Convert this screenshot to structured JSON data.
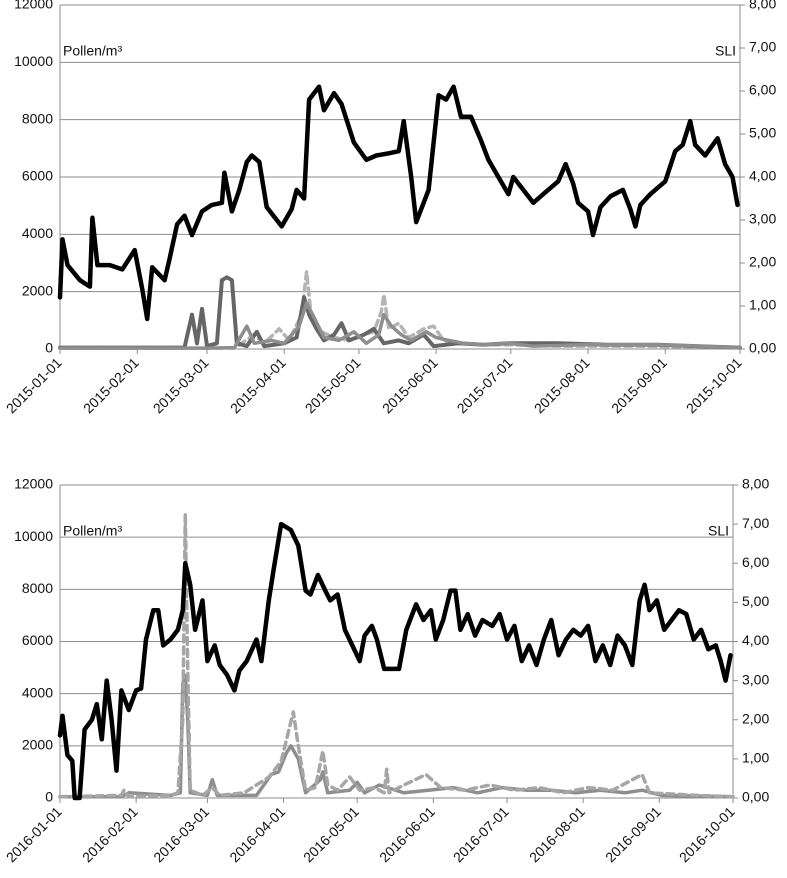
{
  "chart_data": [
    {
      "type": "line",
      "ylabel": "Pollen/m³",
      "y2label": "SLI",
      "grid": true,
      "xlim": [
        "2015-01-01",
        "2015-10-01"
      ],
      "xticks": [
        "2015-01-01",
        "2015-02-01",
        "2015-03-01",
        "2015-04-01",
        "2015-05-01",
        "2015-06-01",
        "2015-07-01",
        "2015-08-01",
        "2015-09-01",
        "2015-10-01"
      ],
      "ylim": [
        0,
        12000
      ],
      "yticks": [
        0,
        2000,
        4000,
        6000,
        8000,
        10000,
        12000
      ],
      "y2lim": [
        0,
        8
      ],
      "y2ticks": [
        {
          "value": 0,
          "label": "0,00"
        },
        {
          "value": 1,
          "label": "1,00"
        },
        {
          "value": 2,
          "label": "2,00"
        },
        {
          "value": 3,
          "label": "3,00"
        },
        {
          "value": 4,
          "label": "4,00"
        },
        {
          "value": 5,
          "label": "5,00"
        },
        {
          "value": 6,
          "label": "6,00"
        },
        {
          "value": 7,
          "label": "7,00"
        },
        {
          "value": 8,
          "label": "8,00"
        }
      ],
      "series": [
        {
          "color": "#b4b4b4",
          "dash": true,
          "line_width": 3.5,
          "x": [
            "2015-01-01",
            "2015-03-12",
            "2015-03-20",
            "2015-03-24",
            "2015-03-30",
            "2015-04-03",
            "2015-04-08",
            "2015-04-10",
            "2015-04-12",
            "2015-04-16",
            "2015-04-21",
            "2015-04-27",
            "2015-05-03",
            "2015-05-07",
            "2015-05-10",
            "2015-05-11",
            "2015-05-13",
            "2015-05-17",
            "2015-05-21",
            "2015-05-27",
            "2015-05-31",
            "2015-06-04",
            "2015-06-10",
            "2015-06-20",
            "2015-06-30",
            "2015-07-20",
            "2015-08-19",
            "2015-10-01"
          ],
          "values": [
            30,
            30,
            500,
            200,
            700,
            300,
            1200,
            2700,
            1000,
            600,
            400,
            300,
            500,
            600,
            1300,
            1900,
            700,
            900,
            400,
            700,
            800,
            300,
            200,
            150,
            150,
            100,
            100,
            50
          ]
        },
        {
          "color": "#666666",
          "line_width": 4,
          "x": [
            "2015-01-01",
            "2015-01-31",
            "2015-02-20",
            "2015-02-23",
            "2015-02-25",
            "2015-02-27",
            "2015-03-01",
            "2015-03-05",
            "2015-03-07",
            "2015-03-09",
            "2015-03-11",
            "2015-03-13",
            "2015-03-17",
            "2015-03-21",
            "2015-03-24",
            "2015-04-01",
            "2015-04-06",
            "2015-04-09",
            "2015-04-11",
            "2015-04-14",
            "2015-04-17",
            "2015-04-21",
            "2015-04-24",
            "2015-04-27",
            "2015-05-03",
            "2015-05-07",
            "2015-05-11",
            "2015-05-17",
            "2015-05-21",
            "2015-05-27",
            "2015-05-31",
            "2015-06-10",
            "2015-06-20",
            "2015-06-30",
            "2015-07-20",
            "2015-08-09",
            "2015-08-29",
            "2015-09-13",
            "2015-10-01"
          ],
          "values": [
            50,
            50,
            50,
            1200,
            200,
            1400,
            100,
            200,
            2400,
            2500,
            2400,
            200,
            100,
            600,
            100,
            200,
            400,
            1800,
            1200,
            700,
            300,
            500,
            900,
            300,
            500,
            700,
            200,
            300,
            200,
            500,
            100,
            200,
            150,
            200,
            200,
            150,
            150,
            100,
            50
          ]
        },
        {
          "color": "#8e8e8e",
          "line_width": 3.5,
          "x": [
            "2015-01-01",
            "2015-03-02",
            "2015-03-12",
            "2015-03-17",
            "2015-03-20",
            "2015-03-27",
            "2015-04-01",
            "2015-04-07",
            "2015-04-10",
            "2015-04-13",
            "2015-04-17",
            "2015-04-23",
            "2015-04-29",
            "2015-05-04",
            "2015-05-09",
            "2015-05-11",
            "2015-05-14",
            "2015-05-18",
            "2015-05-22",
            "2015-05-28",
            "2015-06-01",
            "2015-06-06",
            "2015-06-12",
            "2015-06-20",
            "2015-06-30",
            "2015-07-10",
            "2015-07-30",
            "2015-08-29",
            "2015-10-01"
          ],
          "values": [
            30,
            30,
            50,
            800,
            200,
            300,
            200,
            800,
            1600,
            1100,
            400,
            300,
            600,
            200,
            500,
            1200,
            800,
            500,
            300,
            600,
            400,
            300,
            200,
            150,
            200,
            100,
            150,
            150,
            50
          ]
        },
        {
          "color": "#000000",
          "axis": "y2",
          "line_width": 4.5,
          "x": [
            "2015-01-01",
            "2015-01-02",
            "2015-01-04",
            "2015-01-09",
            "2015-01-13",
            "2015-01-14",
            "2015-01-16",
            "2015-01-21",
            "2015-01-26",
            "2015-01-31",
            "2015-02-03",
            "2015-02-05",
            "2015-02-07",
            "2015-02-12",
            "2015-02-14",
            "2015-02-17",
            "2015-02-20",
            "2015-02-23",
            "2015-02-27",
            "2015-03-03",
            "2015-03-07",
            "2015-03-08",
            "2015-03-11",
            "2015-03-14",
            "2015-03-17",
            "2015-03-19",
            "2015-03-22",
            "2015-03-25",
            "2015-03-31",
            "2015-04-04",
            "2015-04-06",
            "2015-04-09",
            "2015-04-11",
            "2015-04-15",
            "2015-04-17",
            "2015-04-21",
            "2015-04-24",
            "2015-04-29",
            "2015-05-04",
            "2015-05-08",
            "2015-05-13",
            "2015-05-17",
            "2015-05-19",
            "2015-05-22",
            "2015-05-24",
            "2015-05-29",
            "2015-06-02",
            "2015-06-05",
            "2015-06-08",
            "2015-06-11",
            "2015-06-15",
            "2015-06-19",
            "2015-06-22",
            "2015-06-26",
            "2015-06-30",
            "2015-07-02",
            "2015-07-06",
            "2015-07-10",
            "2015-07-14",
            "2015-07-20",
            "2015-07-23",
            "2015-07-26",
            "2015-07-28",
            "2015-08-01",
            "2015-08-03",
            "2015-08-06",
            "2015-08-10",
            "2015-08-15",
            "2015-08-18",
            "2015-08-20",
            "2015-08-22",
            "2015-08-26",
            "2015-09-01",
            "2015-09-05",
            "2015-09-08",
            "2015-09-11",
            "2015-09-13",
            "2015-09-17",
            "2015-09-22",
            "2015-09-25",
            "2015-09-28",
            "2015-09-30"
          ],
          "values": [
            1.2,
            2.55,
            1.95,
            1.6,
            1.45,
            3.05,
            1.95,
            1.95,
            1.85,
            2.3,
            1.4,
            0.7,
            1.9,
            1.6,
            2.1,
            2.9,
            3.1,
            2.65,
            3.2,
            3.35,
            3.4,
            4.1,
            3.2,
            3.7,
            4.35,
            4.5,
            4.35,
            3.3,
            2.85,
            3.25,
            3.7,
            3.5,
            5.8,
            6.1,
            5.55,
            5.95,
            5.7,
            4.8,
            4.4,
            4.5,
            4.55,
            4.6,
            5.3,
            4.0,
            2.95,
            3.7,
            5.9,
            5.8,
            6.1,
            5.4,
            5.4,
            4.85,
            4.4,
            4.0,
            3.6,
            4.0,
            3.7,
            3.4,
            3.6,
            3.9,
            4.3,
            3.85,
            3.4,
            3.2,
            2.65,
            3.3,
            3.55,
            3.7,
            3.25,
            2.85,
            3.35,
            3.6,
            3.9,
            4.6,
            4.75,
            5.3,
            4.75,
            4.5,
            4.9,
            4.3,
            4.0,
            3.35
          ]
        }
      ]
    },
    {
      "type": "line",
      "ylabel": "Pollen/m³",
      "y2label": "SLI",
      "grid": true,
      "xlim": [
        "2016-01-01",
        "2016-10-01"
      ],
      "xticks": [
        "2016-01-01",
        "2016-02-01",
        "2016-03-01",
        "2016-04-01",
        "2016-05-01",
        "2016-06-01",
        "2016-07-01",
        "2016-08-01",
        "2016-09-01",
        "2016-10-01"
      ],
      "ylim": [
        0,
        12000
      ],
      "yticks": [
        0,
        2000,
        4000,
        6000,
        8000,
        10000,
        12000
      ],
      "y2lim": [
        0,
        8
      ],
      "y2ticks": [
        {
          "value": 0,
          "label": "0,00"
        },
        {
          "value": 1,
          "label": "1,00"
        },
        {
          "value": 2,
          "label": "2,00"
        },
        {
          "value": 3,
          "label": "3,00"
        },
        {
          "value": 4,
          "label": "4,00"
        },
        {
          "value": 5,
          "label": "5,00"
        },
        {
          "value": 6,
          "label": "6,00"
        },
        {
          "value": 7,
          "label": "7,00"
        },
        {
          "value": 8,
          "label": "8,00"
        }
      ],
      "series": [
        {
          "color": "#8e8e8e",
          "line_width": 3.5,
          "x": [
            "2016-01-01",
            "2016-01-26",
            "2016-01-29",
            "2016-02-15",
            "2016-02-19",
            "2016-02-20",
            "2016-02-21",
            "2016-02-22",
            "2016-02-23",
            "2016-03-01",
            "2016-03-03",
            "2016-03-05",
            "2016-03-21",
            "2016-03-27",
            "2016-03-30",
            "2016-04-02",
            "2016-04-04",
            "2016-04-07",
            "2016-04-10",
            "2016-04-16",
            "2016-04-17",
            "2016-04-19",
            "2016-04-28",
            "2016-05-01",
            "2016-05-04",
            "2016-05-10",
            "2016-05-20",
            "2016-05-30",
            "2016-06-09",
            "2016-06-19",
            "2016-06-29",
            "2016-07-09",
            "2016-07-19",
            "2016-07-29",
            "2016-08-08",
            "2016-08-18",
            "2016-08-25",
            "2016-09-02",
            "2016-10-01"
          ],
          "values": [
            50,
            50,
            200,
            100,
            200,
            4400,
            4700,
            3000,
            200,
            100,
            700,
            100,
            100,
            900,
            1000,
            1700,
            2000,
            1500,
            200,
            700,
            1000,
            200,
            300,
            600,
            200,
            500,
            200,
            300,
            400,
            200,
            400,
            300,
            300,
            200,
            300,
            200,
            300,
            100,
            50
          ]
        },
        {
          "color": "#a6a6a6",
          "dash": true,
          "line_width": 3.5,
          "x": [
            "2016-01-01",
            "2016-01-26",
            "2016-01-27",
            "2016-01-29",
            "2016-02-15",
            "2016-02-18",
            "2016-02-20",
            "2016-02-21",
            "2016-02-22",
            "2016-02-23",
            "2016-02-28",
            "2016-03-03",
            "2016-03-06",
            "2016-03-16",
            "2016-03-26",
            "2016-03-31",
            "2016-04-05",
            "2016-04-07",
            "2016-04-10",
            "2016-04-14",
            "2016-04-17",
            "2016-04-19",
            "2016-04-23",
            "2016-04-28",
            "2016-05-02",
            "2016-05-08",
            "2016-05-12",
            "2016-05-13",
            "2016-05-14",
            "2016-05-20",
            "2016-05-29",
            "2016-06-04",
            "2016-06-14",
            "2016-06-24",
            "2016-07-04",
            "2016-07-14",
            "2016-07-24",
            "2016-08-03",
            "2016-08-13",
            "2016-08-25",
            "2016-08-28",
            "2016-09-17",
            "2016-10-01"
          ],
          "values": [
            50,
            100,
            300,
            50,
            100,
            200,
            3000,
            10900,
            5000,
            300,
            100,
            400,
            100,
            200,
            800,
            1400,
            3300,
            2000,
            300,
            400,
            1800,
            500,
            300,
            800,
            300,
            400,
            200,
            1100,
            200,
            500,
            900,
            400,
            300,
            500,
            300,
            400,
            200,
            400,
            300,
            900,
            200,
            100,
            50
          ]
        },
        {
          "color": "#000000",
          "axis": "y2",
          "line_width": 4.5,
          "x": [
            "2016-01-01",
            "2016-01-02",
            "2016-01-04",
            "2016-01-06",
            "2016-01-07",
            "2016-01-09",
            "2016-01-11",
            "2016-01-14",
            "2016-01-16",
            "2016-01-18",
            "2016-01-20",
            "2016-01-22",
            "2016-01-24",
            "2016-01-26",
            "2016-01-29",
            "2016-02-01",
            "2016-02-03",
            "2016-02-05",
            "2016-02-08",
            "2016-02-10",
            "2016-02-12",
            "2016-02-15",
            "2016-02-18",
            "2016-02-20",
            "2016-02-21",
            "2016-02-23",
            "2016-02-25",
            "2016-02-28",
            "2016-03-01",
            "2016-03-04",
            "2016-03-06",
            "2016-03-09",
            "2016-03-12",
            "2016-03-14",
            "2016-03-17",
            "2016-03-21",
            "2016-03-23",
            "2016-03-26",
            "2016-03-28",
            "2016-03-31",
            "2016-04-04",
            "2016-04-07",
            "2016-04-10",
            "2016-04-12",
            "2016-04-15",
            "2016-04-18",
            "2016-04-20",
            "2016-04-23",
            "2016-04-26",
            "2016-04-29",
            "2016-05-02",
            "2016-05-04",
            "2016-05-07",
            "2016-05-09",
            "2016-05-12",
            "2016-05-15",
            "2016-05-18",
            "2016-05-21",
            "2016-05-25",
            "2016-05-28",
            "2016-05-31",
            "2016-06-02",
            "2016-06-05",
            "2016-06-08",
            "2016-06-10",
            "2016-06-12",
            "2016-06-15",
            "2016-06-18",
            "2016-06-21",
            "2016-06-25",
            "2016-06-28",
            "2016-07-01",
            "2016-07-04",
            "2016-07-07",
            "2016-07-10",
            "2016-07-13",
            "2016-07-16",
            "2016-07-19",
            "2016-07-22",
            "2016-07-25",
            "2016-07-28",
            "2016-07-31",
            "2016-08-03",
            "2016-08-06",
            "2016-08-09",
            "2016-08-12",
            "2016-08-15",
            "2016-08-18",
            "2016-08-21",
            "2016-08-24",
            "2016-08-26",
            "2016-08-28",
            "2016-08-31",
            "2016-09-03",
            "2016-09-06",
            "2016-09-09",
            "2016-09-12",
            "2016-09-15",
            "2016-09-18",
            "2016-09-21",
            "2016-09-24",
            "2016-09-26",
            "2016-09-28",
            "2016-09-30"
          ],
          "values": [
            1.6,
            2.1,
            1.1,
            0.95,
            0,
            0,
            1.75,
            2.0,
            2.4,
            1.5,
            3.0,
            2.0,
            0.7,
            2.75,
            2.25,
            2.75,
            2.8,
            4.05,
            4.8,
            4.8,
            3.9,
            4.05,
            4.3,
            4.8,
            6.0,
            5.45,
            4.3,
            5.05,
            3.5,
            3.9,
            3.4,
            3.15,
            2.75,
            3.25,
            3.5,
            4.05,
            3.5,
            5.05,
            5.85,
            7.0,
            6.85,
            6.45,
            5.3,
            5.2,
            5.7,
            5.3,
            5.05,
            5.2,
            4.3,
            3.9,
            3.5,
            4.15,
            4.4,
            4.05,
            3.3,
            3.3,
            3.3,
            4.3,
            4.95,
            4.55,
            4.8,
            4.05,
            4.55,
            5.3,
            5.3,
            4.3,
            4.7,
            4.15,
            4.55,
            4.4,
            4.7,
            4.05,
            4.4,
            3.5,
            3.9,
            3.4,
            4.05,
            4.55,
            3.65,
            4.05,
            4.3,
            4.15,
            4.4,
            3.5,
            3.9,
            3.4,
            4.15,
            3.9,
            3.4,
            5.05,
            5.45,
            4.8,
            5.05,
            4.3,
            4.55,
            4.8,
            4.7,
            4.05,
            4.3,
            3.8,
            3.9,
            3.5,
            3.0,
            3.65
          ]
        }
      ]
    }
  ]
}
